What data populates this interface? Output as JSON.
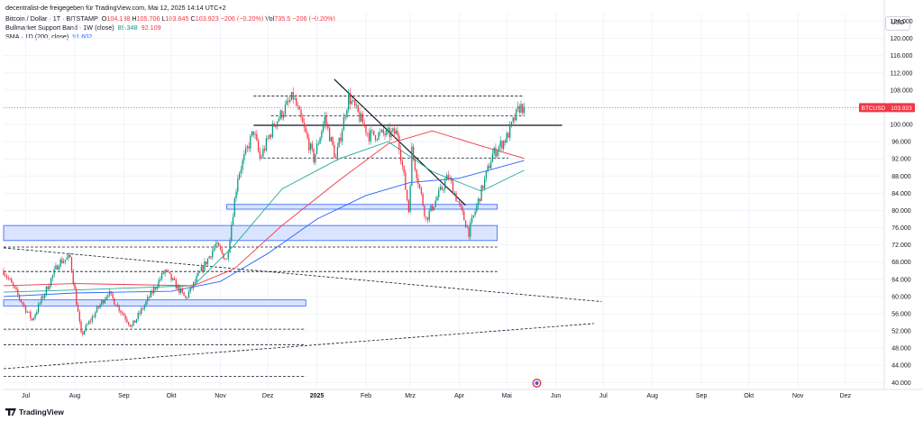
{
  "header": {
    "publisher": "decentralist-de freigegeben für TradingView.com, Mai 12, 2025 14:14 UTC+2",
    "symbol": "Bitcoin / Dollar · 1T · BITSTAMP",
    "o_label": "O",
    "o": "104.138",
    "h_label": "H",
    "h": "105.706",
    "l_label": "L",
    "l": "103.645",
    "c_label": "C",
    "c": "103.923",
    "change": "−206 (−0,20%)",
    "vol_label": "Vol",
    "vol": "735,5",
    "vol_change": "−206 (−0,20%)",
    "bull_label": "Bullmarket Support Band · 1W (close)",
    "bull_v1": "89.348",
    "bull_v2": "92.109",
    "sma_label": "SMA · 1D (200, close)",
    "sma_v": "91.602"
  },
  "currency": "USD",
  "price_tag": {
    "symbol": "BTCUSD",
    "value": "103.923"
  },
  "brand": "TradingView",
  "colors": {
    "up": "#089981",
    "down": "#f23645",
    "sma": "#2962ff",
    "band_green": "#22ab94",
    "band_red": "#f23645",
    "zone_fill": "#dbe4ff",
    "zone_stroke": "#2962ff"
  },
  "chart_data": {
    "type": "candlestick",
    "y_ticks": [
      "40.000",
      "44.000",
      "48.000",
      "52.000",
      "56.000",
      "60.000",
      "64.000",
      "68.000",
      "72.000",
      "76.000",
      "80.000",
      "84.000",
      "88.000",
      "92.000",
      "96.000",
      "100.000",
      "104.000",
      "108.000",
      "112.000",
      "116.000",
      "120.000",
      "124.000"
    ],
    "x_ticks": [
      "Jul",
      "Aug",
      "Sep",
      "Okt",
      "Nov",
      "Dez",
      "2025",
      "Feb",
      "Mrz",
      "Apr",
      "Mai",
      "Jun",
      "Jul",
      "Aug",
      "Sep",
      "Okt",
      "Nov",
      "Dez"
    ],
    "ylim": [
      38800,
      126000
    ],
    "start_date": "2024-06-17",
    "end_date": "2025-12-25",
    "price_path": [
      [
        "2024-06-17",
        66000
      ],
      [
        "2024-07-05",
        54500
      ],
      [
        "2024-07-22",
        68000
      ],
      [
        "2024-07-29",
        69000
      ],
      [
        "2024-08-05",
        51000
      ],
      [
        "2024-08-22",
        61000
      ],
      [
        "2024-09-06",
        53000
      ],
      [
        "2024-09-27",
        66000
      ],
      [
        "2024-10-10",
        59500
      ],
      [
        "2024-10-29",
        72000
      ],
      [
        "2024-11-05",
        68500
      ],
      [
        "2024-11-12",
        88000
      ],
      [
        "2024-11-22",
        98500
      ],
      [
        "2024-11-26",
        92000
      ],
      [
        "2024-12-05",
        100000
      ],
      [
        "2024-12-17",
        106500
      ],
      [
        "2024-12-30",
        92000
      ],
      [
        "2025-01-06",
        101500
      ],
      [
        "2025-01-13",
        92000
      ],
      [
        "2025-01-21",
        106500
      ],
      [
        "2025-02-03",
        97500
      ],
      [
        "2025-02-21",
        98000
      ],
      [
        "2025-02-28",
        80000
      ],
      [
        "2025-03-02",
        94000
      ],
      [
        "2025-03-11",
        78000
      ],
      [
        "2025-03-25",
        88000
      ],
      [
        "2025-04-07",
        75000
      ],
      [
        "2025-04-22",
        93000
      ],
      [
        "2025-05-01",
        97000
      ],
      [
        "2025-05-09",
        104000
      ],
      [
        "2025-05-12",
        103923
      ]
    ],
    "sma200": [
      [
        "2024-06-17",
        60000
      ],
      [
        "2024-08-01",
        60800
      ],
      [
        "2024-10-01",
        61200
      ],
      [
        "2024-11-01",
        63500
      ],
      [
        "2024-12-01",
        70000
      ],
      [
        "2025-01-01",
        78000
      ],
      [
        "2025-02-01",
        83500
      ],
      [
        "2025-03-01",
        86500
      ],
      [
        "2025-04-01",
        87500
      ],
      [
        "2025-05-12",
        91602
      ]
    ],
    "bull_band_green": [
      [
        "2024-06-17",
        61000
      ],
      [
        "2024-08-01",
        61500
      ],
      [
        "2024-10-15",
        62500
      ],
      [
        "2024-11-10",
        72000
      ],
      [
        "2024-12-10",
        85000
      ],
      [
        "2025-01-15",
        92000
      ],
      [
        "2025-02-15",
        96000
      ],
      [
        "2025-03-15",
        89000
      ],
      [
        "2025-04-15",
        84500
      ],
      [
        "2025-05-12",
        89348
      ]
    ],
    "bull_band_red": [
      [
        "2024-06-17",
        62500
      ],
      [
        "2024-08-01",
        63000
      ],
      [
        "2024-10-15",
        62500
      ],
      [
        "2024-11-10",
        66500
      ],
      [
        "2024-12-10",
        76500
      ],
      [
        "2025-01-15",
        87000
      ],
      [
        "2025-02-15",
        95500
      ],
      [
        "2025-03-15",
        98500
      ],
      [
        "2025-04-15",
        95000
      ],
      [
        "2025-05-12",
        92109
      ]
    ],
    "zones": [
      {
        "from": "2024-06-17",
        "to": "2024-12-25",
        "low": 57800,
        "high": 59200
      },
      {
        "from": "2024-06-17",
        "to": "2025-04-25",
        "low": 73000,
        "high": 76500
      },
      {
        "from": "2024-11-05",
        "to": "2025-04-25",
        "low": 80300,
        "high": 81400
      }
    ],
    "hlines": [
      {
        "from": "2024-11-22",
        "to": "2025-05-12",
        "y": 106600,
        "style": "dashed"
      },
      {
        "from": "2024-12-03",
        "to": "2025-05-12",
        "y": 102000,
        "style": "dashed"
      },
      {
        "from": "2024-11-22",
        "to": "2025-06-05",
        "y": 99800,
        "style": "solid"
      },
      {
        "from": "2024-11-28",
        "to": "2025-05-02",
        "y": 92200,
        "style": "dashed"
      },
      {
        "from": "2024-06-17",
        "to": "2025-04-25",
        "y": 71500,
        "style": "dashed"
      },
      {
        "from": "2024-06-17",
        "to": "2025-04-25",
        "y": 65800,
        "style": "dashed"
      },
      {
        "from": "2024-06-17",
        "to": "2024-12-25",
        "y": 52400,
        "style": "dashed"
      },
      {
        "from": "2024-06-17",
        "to": "2024-12-25",
        "y": 48800,
        "style": "dashed"
      },
      {
        "from": "2024-06-17",
        "to": "2024-12-25",
        "y": 41400,
        "style": "dashed"
      }
    ],
    "tlines": [
      {
        "x1": "2025-01-12",
        "y1": 110500,
        "x2": "2025-04-05",
        "y2": 81200,
        "style": "solid"
      },
      {
        "x1": "2024-06-17",
        "y1": 71300,
        "x2": "2025-06-30",
        "y2": 58800,
        "style": "dashed"
      },
      {
        "x1": "2024-06-17",
        "y1": 43200,
        "x2": "2025-06-25",
        "y2": 53700,
        "style": "dashed"
      }
    ]
  }
}
